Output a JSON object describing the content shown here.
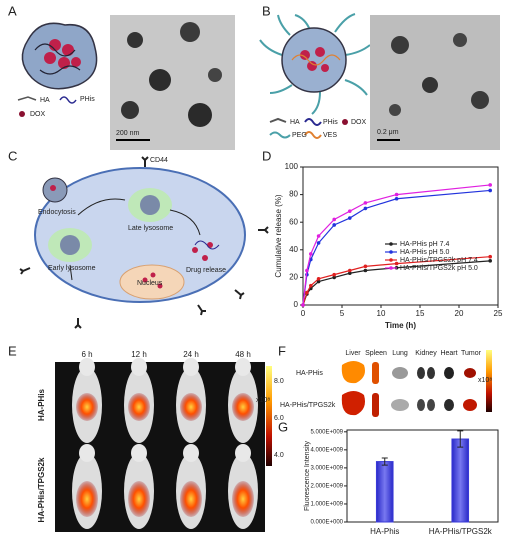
{
  "panels": [
    {
      "label": "A",
      "legend": [
        "HA",
        "PHis",
        "DOX"
      ],
      "scale_bar": "200 nm"
    },
    {
      "label": "B",
      "legend": [
        "HA",
        "PHis",
        "DOX",
        "PEG",
        "VES"
      ],
      "scale_bar": "0.2 μm"
    },
    {
      "label": "C",
      "texts": [
        "CD44",
        "Endocytosis",
        "Late lysosome",
        "Early lysosome",
        "Drug release",
        "Nucleus"
      ]
    },
    {
      "label": "D"
    },
    {
      "label": "E",
      "columns": [
        "6 h",
        "12 h",
        "24 h",
        "48 h"
      ],
      "rows": [
        "HA-PHis",
        "HA-PHis/TPGS2k"
      ],
      "colorbar": [
        "8.0",
        "6.0",
        "4.0"
      ],
      "colorbar_unit": "x10⁸"
    },
    {
      "label": "F",
      "columns": [
        "Liver",
        "Spleen",
        "Lung",
        "Kidney",
        "Heart",
        "Tumor"
      ],
      "rows": [
        "HA-PHis",
        "HA-PHis/TPGS2k"
      ],
      "colorbar_unit": "x10⁸"
    },
    {
      "label": "G"
    }
  ],
  "chart_data": [
    {
      "type": "line",
      "xlabel": "Time (h)",
      "ylabel": "Cumulative release (%)",
      "x": [
        0,
        0.5,
        1,
        2,
        4,
        6,
        8,
        12,
        24
      ],
      "xlim": [
        0,
        25
      ],
      "xticks": [
        0,
        5,
        10,
        15,
        20,
        25
      ],
      "ylim": [
        0,
        100
      ],
      "yticks": [
        0,
        20,
        40,
        60,
        80,
        100
      ],
      "series": [
        {
          "name": "HA-PHis pH 7.4",
          "color": "#222222",
          "values": [
            0,
            8,
            12,
            17,
            20,
            23,
            25,
            27,
            32
          ]
        },
        {
          "name": "HA-PHis pH 5.0",
          "color": "#2233dd",
          "values": [
            0,
            22,
            33,
            45,
            58,
            63,
            70,
            77,
            83
          ]
        },
        {
          "name": "HA-PHis/TPGS2k pH 7.4",
          "color": "#e02020",
          "values": [
            0,
            9,
            14,
            19,
            22,
            25,
            28,
            30,
            35
          ]
        },
        {
          "name": "HA-PHis/TPGS2k pH 5.0",
          "color": "#e020e0",
          "values": [
            0,
            25,
            37,
            50,
            62,
            68,
            74,
            80,
            87
          ]
        }
      ]
    },
    {
      "type": "bar",
      "ylabel": "Fluorescence Intensity",
      "color": "#3a3ad8",
      "categories": [
        "HA-Phis",
        "HA-PHis/TPGS2k"
      ],
      "values": [
        3350000000,
        4600000000
      ],
      "errors": [
        200000000,
        450000000
      ],
      "ylim": [
        0,
        5100000000
      ],
      "yticks": [
        {
          "value": 0,
          "label": "0.000E+000"
        },
        {
          "value": 1000000000,
          "label": "1.000E+009"
        },
        {
          "value": 2000000000,
          "label": "2.000E+009"
        },
        {
          "value": 3000000000,
          "label": "3.000E+009"
        },
        {
          "value": 4000000000,
          "label": "4.000E+009"
        },
        {
          "value": 5000000000,
          "label": "5.000E+009"
        }
      ]
    }
  ]
}
